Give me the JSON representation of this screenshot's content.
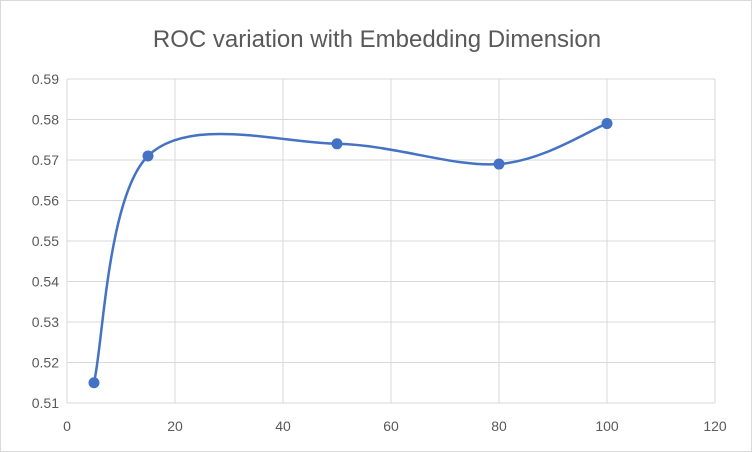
{
  "chart_data": {
    "type": "line",
    "title": "ROC variation with Embedding  Dimension",
    "xlabel": "",
    "ylabel": "",
    "x": [
      5,
      15,
      50,
      80,
      100
    ],
    "series": [
      {
        "values": [
          0.515,
          0.571,
          0.574,
          0.569,
          0.579
        ]
      }
    ],
    "xlim": [
      0,
      120
    ],
    "ylim": [
      0.51,
      0.59
    ],
    "x_ticks": [
      "0",
      "20",
      "40",
      "60",
      "80",
      "100",
      "120"
    ],
    "y_ticks": [
      "0.51",
      "0.52",
      "0.53",
      "0.54",
      "0.55",
      "0.56",
      "0.57",
      "0.58",
      "0.59"
    ],
    "grid": true,
    "smooth": true,
    "line_color": "#4472C4",
    "grid_color": "#d9d9d9"
  }
}
